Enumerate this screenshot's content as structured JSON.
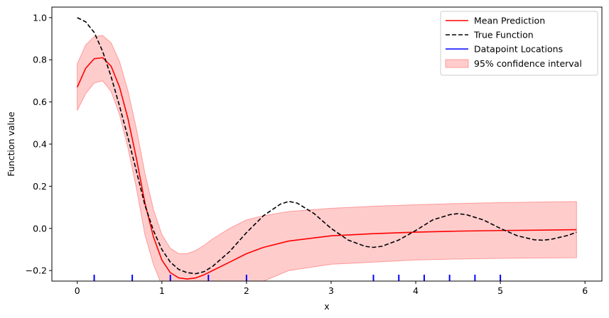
{
  "chart_data": {
    "type": "line",
    "title": "",
    "xlabel": "x",
    "ylabel": "Function value",
    "xlim": [
      -0.3,
      6.2
    ],
    "ylim": [
      -0.25,
      1.05
    ],
    "xticks": [
      0,
      1,
      2,
      3,
      4,
      5,
      6
    ],
    "xtick_labels": [
      "0",
      "1",
      "2",
      "3",
      "4",
      "5",
      "6"
    ],
    "yticks": [
      -0.2,
      0.0,
      0.2,
      0.4,
      0.6,
      0.8,
      1.0
    ],
    "ytick_labels": [
      "−0.2",
      "0.0",
      "0.2",
      "0.4",
      "0.6",
      "0.8",
      "1.0"
    ],
    "grid": false,
    "legend_position": "top-right",
    "colors": {
      "mean": "#ff0000",
      "true": "#000000",
      "datapoints": "#0000ff",
      "band": "#ffcccc",
      "band_edge": "#ff9999"
    },
    "series": [
      {
        "name": "Mean Prediction",
        "style": "solid",
        "x": [
          0.0,
          0.1,
          0.2,
          0.3,
          0.4,
          0.5,
          0.6,
          0.7,
          0.8,
          0.9,
          1.0,
          1.1,
          1.2,
          1.3,
          1.4,
          1.5,
          1.6,
          1.8,
          2.0,
          2.2,
          2.5,
          3.0,
          3.5,
          4.0,
          4.5,
          5.0,
          5.5,
          5.9
        ],
        "values": [
          0.67,
          0.76,
          0.805,
          0.81,
          0.77,
          0.67,
          0.52,
          0.33,
          0.12,
          -0.04,
          -0.15,
          -0.21,
          -0.235,
          -0.24,
          -0.235,
          -0.22,
          -0.2,
          -0.16,
          -0.12,
          -0.09,
          -0.06,
          -0.035,
          -0.025,
          -0.018,
          -0.013,
          -0.01,
          -0.008,
          -0.006
        ]
      },
      {
        "name": "True Function",
        "style": "dashed",
        "x": [
          0.0,
          0.1,
          0.2,
          0.3,
          0.4,
          0.5,
          0.6,
          0.7,
          0.8,
          0.9,
          1.0,
          1.1,
          1.2,
          1.3,
          1.4,
          1.5,
          1.6,
          1.8,
          2.0,
          2.2,
          2.4,
          2.5,
          2.6,
          2.8,
          3.0,
          3.2,
          3.4,
          3.5,
          3.6,
          3.8,
          4.0,
          4.2,
          4.4,
          4.5,
          4.6,
          4.8,
          5.0,
          5.2,
          5.4,
          5.5,
          5.6,
          5.8,
          5.9
        ],
        "values": [
          1.0,
          0.98,
          0.93,
          0.84,
          0.72,
          0.58,
          0.43,
          0.27,
          0.11,
          -0.01,
          -0.1,
          -0.16,
          -0.195,
          -0.21,
          -0.215,
          -0.205,
          -0.18,
          -0.11,
          -0.02,
          0.06,
          0.115,
          0.128,
          0.12,
          0.07,
          0.0,
          -0.055,
          -0.085,
          -0.09,
          -0.085,
          -0.055,
          -0.01,
          0.04,
          0.065,
          0.07,
          0.065,
          0.04,
          0.0,
          -0.035,
          -0.054,
          -0.056,
          -0.052,
          -0.033,
          -0.018
        ]
      }
    ],
    "confidence_interval": {
      "name": "95% confidence interval",
      "x": [
        0.0,
        0.1,
        0.2,
        0.3,
        0.4,
        0.5,
        0.6,
        0.7,
        0.8,
        0.9,
        1.0,
        1.1,
        1.2,
        1.3,
        1.4,
        1.5,
        1.6,
        1.8,
        2.0,
        2.2,
        2.5,
        3.0,
        3.5,
        4.0,
        4.5,
        5.0,
        5.5,
        5.9
      ],
      "upper": [
        0.78,
        0.87,
        0.91,
        0.915,
        0.88,
        0.79,
        0.65,
        0.47,
        0.26,
        0.09,
        -0.03,
        -0.095,
        -0.12,
        -0.12,
        -0.105,
        -0.08,
        -0.05,
        0.0,
        0.04,
        0.06,
        0.08,
        0.095,
        0.105,
        0.112,
        0.118,
        0.122,
        0.125,
        0.127
      ],
      "lower": [
        0.56,
        0.64,
        0.69,
        0.7,
        0.65,
        0.54,
        0.38,
        0.19,
        -0.03,
        -0.17,
        -0.27,
        -0.33,
        -0.36,
        -0.37,
        -0.37,
        -0.36,
        -0.35,
        -0.32,
        -0.29,
        -0.25,
        -0.2,
        -0.17,
        -0.16,
        -0.15,
        -0.145,
        -0.142,
        -0.14,
        -0.139
      ]
    },
    "datapoint_locations": {
      "name": "Datapoint Locations",
      "x": [
        0.2,
        0.65,
        1.1,
        1.55,
        2.0,
        3.5,
        3.8,
        4.1,
        4.4,
        4.7,
        5.0
      ]
    }
  }
}
